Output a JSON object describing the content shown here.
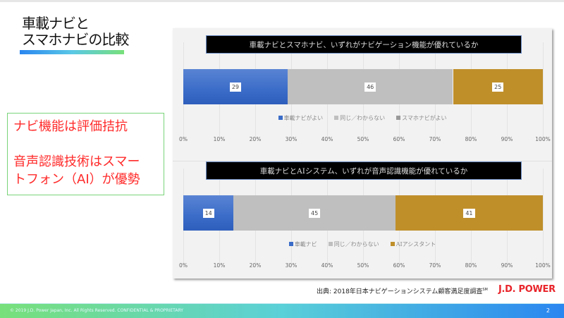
{
  "title": {
    "line1": "車載ナビと",
    "line2": "スマホナビの比較"
  },
  "callout": {
    "line1": "ナビ機能は評価拮抗",
    "line2": "音声認識技術はスマー",
    "line3": "トフォン（AI）が優勢"
  },
  "colors": {
    "blue": "#3a6cc8",
    "gray": "#bfbfbf",
    "gold": "#bf8f2a",
    "callout_text": "#ff2a2a",
    "logo": "#e8242a"
  },
  "chart_data": [
    {
      "type": "bar",
      "orientation": "horizontal",
      "stacked": "100%",
      "title": "車載ナビとスマホナビ、いずれがナビゲーション機能が優れているか",
      "series": [
        {
          "name": "車載ナビがよい",
          "values": [
            29
          ]
        },
        {
          "name": "同じ／わからない",
          "values": [
            46
          ]
        },
        {
          "name": "スマホナビがよい",
          "values": [
            25
          ]
        }
      ],
      "xticks": [
        "0%",
        "10%",
        "20%",
        "30%",
        "40%",
        "50%",
        "60%",
        "70%",
        "80%",
        "90%",
        "100%"
      ],
      "xlim": [
        0,
        100
      ],
      "grid": true,
      "legend": "bottom"
    },
    {
      "type": "bar",
      "orientation": "horizontal",
      "stacked": "100%",
      "title": "車載ナビとAIシステム、いずれが音声認識機能が優れているか",
      "series": [
        {
          "name": "車載ナビ",
          "values": [
            14
          ]
        },
        {
          "name": "同じ／わからない",
          "values": [
            45
          ]
        },
        {
          "name": "AIアシスタント",
          "values": [
            41
          ]
        }
      ],
      "xticks": [
        "0%",
        "10%",
        "20%",
        "30%",
        "40%",
        "50%",
        "60%",
        "70%",
        "80%",
        "90%",
        "100%"
      ],
      "xlim": [
        0,
        100
      ],
      "grid": true,
      "legend": "bottom"
    }
  ],
  "source": {
    "text": "出典: 2018年日本ナビゲーションシステム顧客満足度調査",
    "sup": "SM"
  },
  "logo": "J.D. POWER",
  "footer": {
    "copyright": "© 2019 J.D. Power Japan, Inc. All Rights Reserved. CONFIDENTIAL & PROPRIETARY",
    "page": "2"
  }
}
